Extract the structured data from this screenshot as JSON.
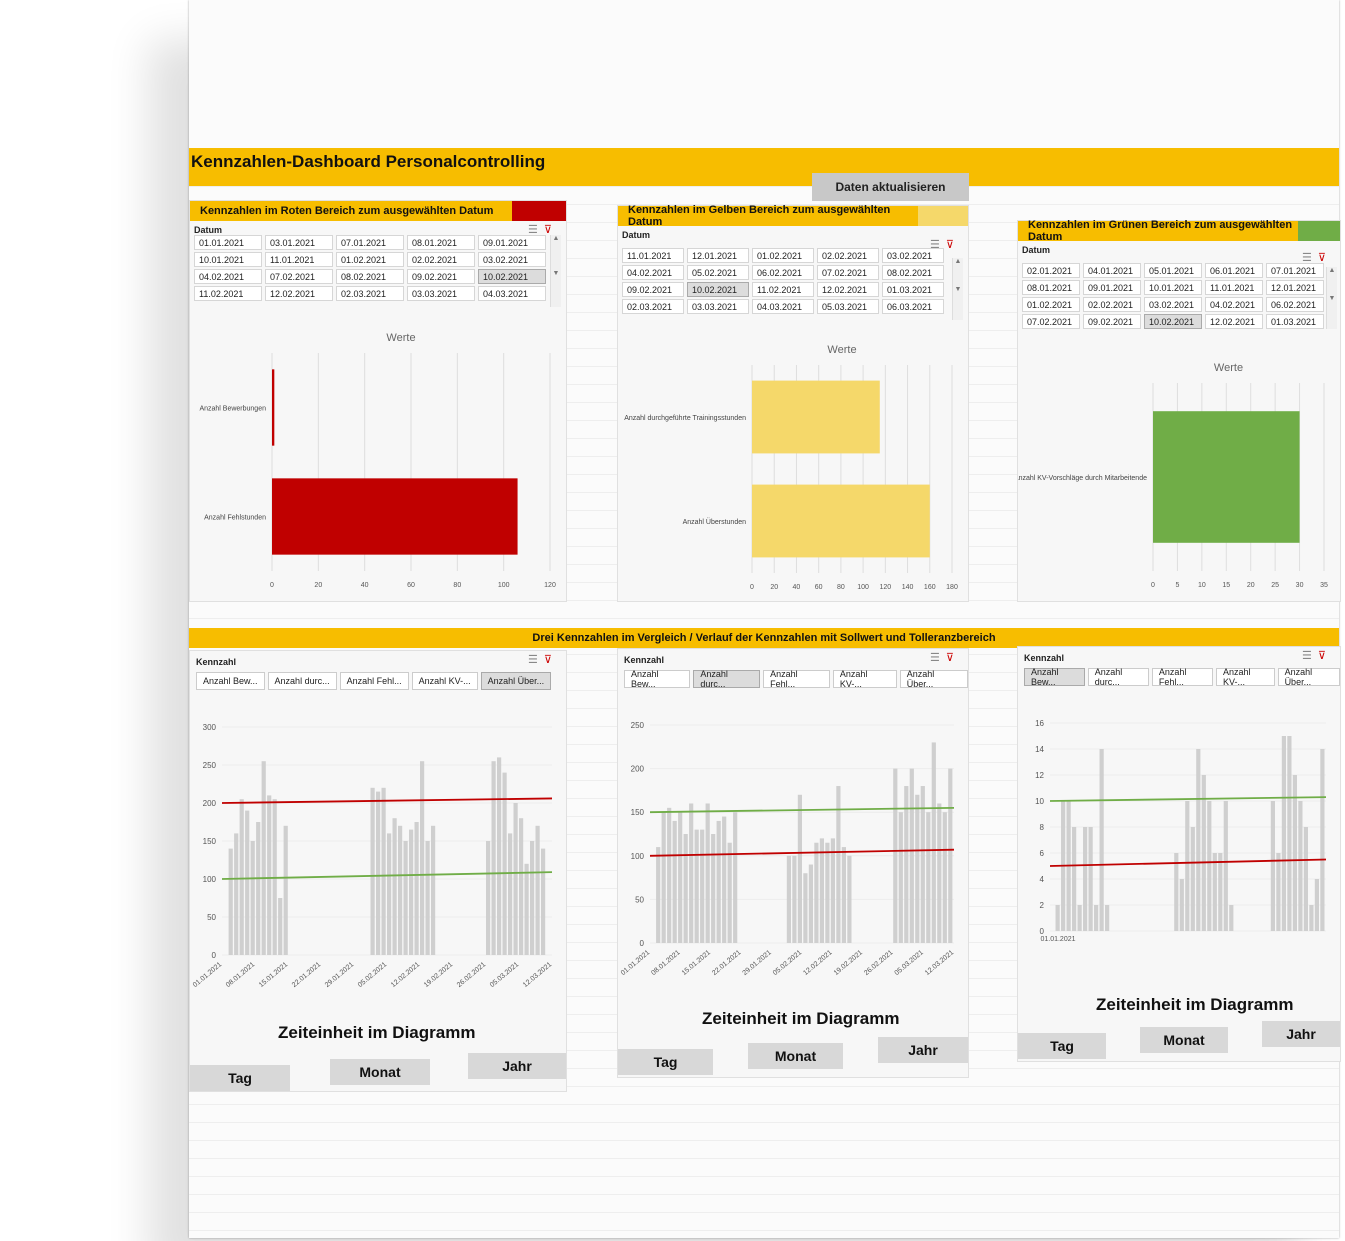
{
  "header": {
    "title": "Kennzahlen-Dashboard Personalcontrolling",
    "refresh_label": "Daten aktualisieren"
  },
  "panels": [
    {
      "title": "Kennzahlen im Roten Bereich zum ausgewählten Datum",
      "color": "#c00000",
      "slicer_title": "Datum",
      "dates": [
        "01.01.2021",
        "03.01.2021",
        "07.01.2021",
        "08.01.2021",
        "09.01.2021",
        "10.01.2021",
        "11.01.2021",
        "01.02.2021",
        "02.02.2021",
        "03.02.2021",
        "04.02.2021",
        "07.02.2021",
        "08.02.2021",
        "09.02.2021",
        "10.02.2021",
        "11.02.2021",
        "12.02.2021",
        "02.03.2021",
        "03.03.2021",
        "04.03.2021"
      ],
      "selected_date": "10.02.2021"
    },
    {
      "title": "Kennzahlen im Gelben Bereich zum ausgewählten Datum",
      "color": "#f5d86a",
      "slicer_title": "Datum",
      "dates": [
        "11.01.2021",
        "12.01.2021",
        "01.02.2021",
        "02.02.2021",
        "03.02.2021",
        "04.02.2021",
        "05.02.2021",
        "06.02.2021",
        "07.02.2021",
        "08.02.2021",
        "09.02.2021",
        "10.02.2021",
        "11.02.2021",
        "12.02.2021",
        "01.03.2021",
        "02.03.2021",
        "03.03.2021",
        "04.03.2021",
        "05.03.2021",
        "06.03.2021"
      ],
      "selected_date": "10.02.2021"
    },
    {
      "title": "Kennzahlen im Grünen Bereich zum ausgewählten Datum",
      "color": "#70ad47",
      "slicer_title": "Datum",
      "dates": [
        "02.01.2021",
        "04.01.2021",
        "05.01.2021",
        "06.01.2021",
        "07.01.2021",
        "08.01.2021",
        "09.01.2021",
        "10.01.2021",
        "11.01.2021",
        "12.01.2021",
        "01.02.2021",
        "02.02.2021",
        "03.02.2021",
        "04.02.2021",
        "06.02.2021",
        "07.02.2021",
        "09.02.2021",
        "10.02.2021",
        "12.02.2021",
        "01.03.2021"
      ],
      "selected_date": "10.02.2021"
    }
  ],
  "chart_data": [
    {
      "type": "bar",
      "title": "Werte",
      "orientation": "horizontal",
      "categories": [
        "Anzahl Bewerbungen",
        "Anzahl Fehlstunden"
      ],
      "values": [
        1,
        106
      ],
      "xlim": [
        0,
        120
      ],
      "ticks": [
        "0",
        "20",
        "40",
        "60",
        "80",
        "100",
        "120"
      ],
      "color": "#c00000"
    },
    {
      "type": "bar",
      "title": "Werte",
      "orientation": "horizontal",
      "categories": [
        "Anzahl durchgeführte Trainingsstunden",
        "Anzahl Überstunden"
      ],
      "values": [
        115,
        160
      ],
      "xlim": [
        0,
        180
      ],
      "ticks": [
        "0",
        "20",
        "40",
        "60",
        "80",
        "100",
        "120",
        "140",
        "160",
        "180"
      ],
      "color": "#f5d86a"
    },
    {
      "type": "bar",
      "title": "Werte",
      "orientation": "horizontal",
      "categories": [
        "Anzahl KV-Vorschläge durch Mitarbeitende"
      ],
      "values": [
        30
      ],
      "xlim": [
        0,
        35
      ],
      "ticks": [
        "0",
        "5",
        "10",
        "15",
        "20",
        "25",
        "30",
        "35"
      ],
      "color": "#70ad47"
    },
    {
      "type": "bar",
      "ylim": [
        0,
        300
      ],
      "yticks": [
        "0",
        "50",
        "100",
        "150",
        "200",
        "250",
        "300"
      ],
      "xticks": [
        "01.01.2021",
        "08.01.2021",
        "15.01.2021",
        "22.01.2021",
        "29.01.2021",
        "05.02.2021",
        "12.02.2021",
        "19.02.2021",
        "26.02.2021",
        "05.03.2021",
        "12.03.2021"
      ],
      "groups": [
        {
          "start": 0.02,
          "values": [
            140,
            160,
            205,
            190,
            150,
            175,
            255,
            210,
            205,
            75,
            170
          ]
        },
        {
          "start": 0.45,
          "values": [
            220,
            215,
            220,
            160,
            180,
            170,
            150,
            165,
            175,
            255,
            150,
            170
          ]
        },
        {
          "start": 0.8,
          "values": [
            150,
            255,
            260,
            240,
            160,
            200,
            180,
            120,
            150,
            170,
            140
          ]
        }
      ],
      "reference_lines": [
        {
          "name": "Sollwert",
          "color": "#c00000",
          "from": 200,
          "to": 206
        },
        {
          "name": "Toleranz",
          "color": "#70ad47",
          "from": 100,
          "to": 109
        }
      ]
    },
    {
      "type": "bar",
      "ylim": [
        0,
        250
      ],
      "yticks": [
        "0",
        "50",
        "100",
        "150",
        "200",
        "250"
      ],
      "xticks": [
        "01.01.2021",
        "08.01.2021",
        "15.01.2021",
        "22.01.2021",
        "29.01.2021",
        "05.02.2021",
        "12.02.2021",
        "19.02.2021",
        "26.02.2021",
        "05.03.2021",
        "12.03.2021"
      ],
      "groups": [
        {
          "start": 0.02,
          "values": [
            110,
            150,
            155,
            140,
            150,
            125,
            160,
            130,
            130,
            160,
            125,
            140,
            145,
            115,
            150
          ]
        },
        {
          "start": 0.45,
          "values": [
            100,
            100,
            170,
            80,
            90,
            115,
            120,
            115,
            120,
            180,
            110,
            100
          ]
        },
        {
          "start": 0.8,
          "values": [
            200,
            150,
            180,
            200,
            170,
            180,
            150,
            230,
            160,
            150,
            200
          ]
        }
      ],
      "reference_lines": [
        {
          "name": "Sollwert",
          "color": "#70ad47",
          "from": 150,
          "to": 155
        },
        {
          "name": "Toleranz",
          "color": "#c00000",
          "from": 100,
          "to": 107
        }
      ]
    },
    {
      "type": "bar",
      "ylim": [
        0,
        16
      ],
      "yticks": [
        "0",
        "2",
        "4",
        "6",
        "8",
        "10",
        "12",
        "14",
        "16"
      ],
      "xticks": [
        "01.01.2021"
      ],
      "groups": [
        {
          "start": 0.02,
          "values": [
            2,
            10,
            10,
            8,
            2,
            8,
            8,
            2,
            14,
            2
          ]
        },
        {
          "start": 0.45,
          "values": [
            6,
            4,
            10,
            8,
            14,
            12,
            10,
            6,
            6,
            10,
            2
          ]
        },
        {
          "start": 0.8,
          "values": [
            10,
            6,
            15,
            15,
            12,
            10,
            8,
            2,
            4,
            14
          ]
        }
      ],
      "reference_lines": [
        {
          "name": "Sollwert",
          "color": "#70ad47",
          "from": 10,
          "to": 10.3
        },
        {
          "name": "Toleranz",
          "color": "#c00000",
          "from": 5,
          "to": 5.5
        }
      ]
    }
  ],
  "compare": {
    "title": "Drei Kennzahlen im Vergleich / Verlauf der Kennzahlen mit Sollwert und Tolleranzbereich",
    "slicer_title": "Kennzahl",
    "buttons": [
      "Anzahl Bew...",
      "Anzahl durc...",
      "Anzahl Fehl...",
      "Anzahl KV-...",
      "Anzahl Über..."
    ],
    "selected": [
      4,
      1,
      0
    ],
    "zeit_label": "Zeiteinheit im Diagramm",
    "time_buttons": [
      "Tag",
      "Monat",
      "Jahr"
    ]
  }
}
